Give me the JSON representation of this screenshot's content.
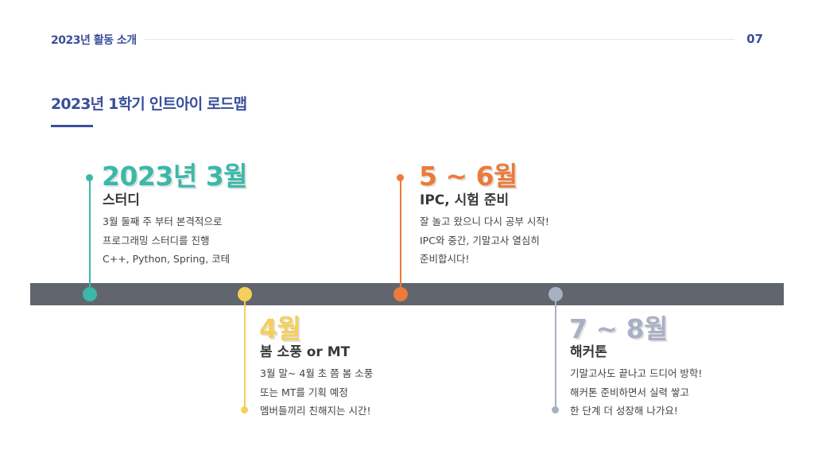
{
  "header": {
    "section": "2023년 활동 소개",
    "page_number": "07"
  },
  "title": "2023년 1학기 인트아이 로드맵",
  "colors": {
    "teal": "#3bb8a8",
    "yellow": "#f5cf5a",
    "orange": "#ec7a3a",
    "gray": "#a8b0c4",
    "navy": "#3a4f9a",
    "bar": "#61656d"
  },
  "milestones": [
    {
      "period": "2023년 3월",
      "subtitle": "스터디",
      "lines": [
        "3월 둘째 주 부터 본격적으로",
        "프로그래밍 스터디를 진행",
        "C++, Python, Spring, 코테"
      ]
    },
    {
      "period": "4월",
      "subtitle": "봄 소풍 or MT",
      "lines": [
        "3월 말~ 4월 초 쯤 봄 소풍",
        "또는 MT를 기획 예정",
        "멤버들끼리 친해지는 시간!"
      ]
    },
    {
      "period": "5 ~ 6월",
      "subtitle": "IPC, 시험 준비",
      "lines": [
        "잘 놀고 왔으니 다시 공부 시작!",
        "IPC와 중간, 기말고사 열심히",
        "준비합시다!"
      ]
    },
    {
      "period": "7 ~ 8월",
      "subtitle": "해커톤",
      "lines": [
        "기말고사도 끝나고 드디어 방학!",
        "해커톤 준비하면서 실력 쌓고",
        "한 단계 더 성장해 나가요!"
      ]
    }
  ]
}
